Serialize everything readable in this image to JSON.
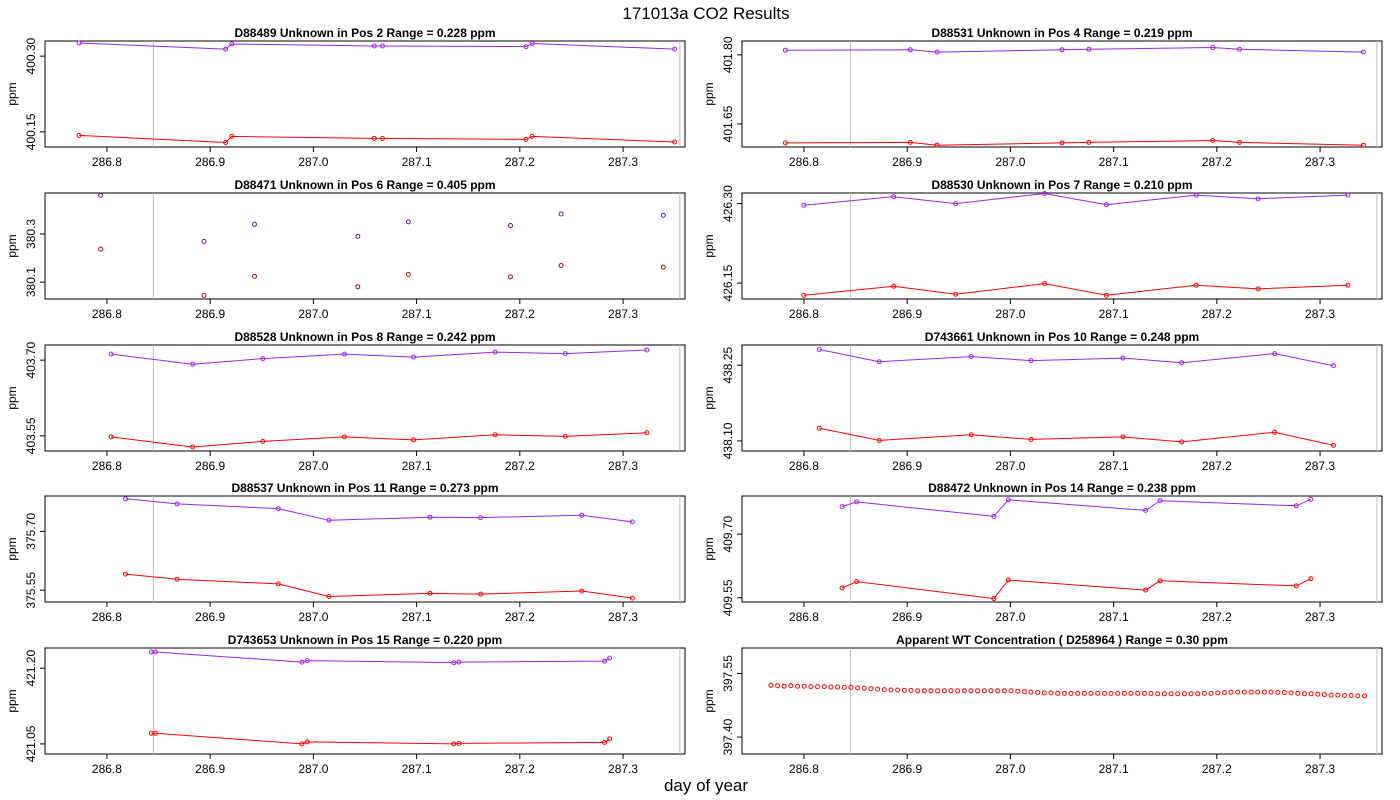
{
  "page_title": "171013a  CO2 Results",
  "x_axis_label": "day of year",
  "colors": {
    "upper_series": "#a020f0",
    "lower_series": "#ff0000",
    "mixed_points": "#0000ff",
    "marker_lines": "#bebebe",
    "axes": "#000000"
  },
  "chart_data": [
    {
      "type": "line",
      "panel": "D88489",
      "title": {
        "id": "D88489",
        "name": "Unknown in Pos 2",
        "range_label": "Range =  0.228 ppm"
      },
      "ylabel": "ppm",
      "xlim": [
        286.74,
        287.36
      ],
      "ylim": [
        400.12,
        400.33
      ],
      "xticks": [
        "286.8",
        "286.9",
        "287.0",
        "287.1",
        "287.2",
        "287.3"
      ],
      "yticks": [
        "400.15",
        "400.30"
      ],
      "marker_lines": [
        286.845,
        287.355
      ],
      "series": [
        {
          "name": "upper",
          "x": [
            286.773,
            286.915,
            286.921,
            287.059,
            287.067,
            287.206,
            287.212,
            287.35
          ],
          "y": [
            400.326,
            400.314,
            400.324,
            400.32,
            400.32,
            400.319,
            400.325,
            400.314
          ]
        },
        {
          "name": "lower",
          "x": [
            286.773,
            286.915,
            286.921,
            287.059,
            287.067,
            287.206,
            287.212,
            287.35
          ],
          "y": [
            400.143,
            400.129,
            400.141,
            400.137,
            400.137,
            400.135,
            400.141,
            400.13
          ]
        }
      ]
    },
    {
      "type": "line",
      "panel": "D88531",
      "title": {
        "id": "D88531",
        "name": "Unknown in Pos 4",
        "range_label": "Range =  0.219 ppm"
      },
      "ylabel": "ppm",
      "xlim": [
        286.74,
        287.36
      ],
      "ylim": [
        401.6,
        401.83
      ],
      "xticks": [
        "286.8",
        "286.9",
        "287.0",
        "287.1",
        "287.2",
        "287.3"
      ],
      "yticks": [
        "401.65",
        "401.80"
      ],
      "marker_lines": [
        286.845,
        287.355
      ],
      "series": [
        {
          "name": "upper",
          "x": [
            286.782,
            286.903,
            286.929,
            287.05,
            287.076,
            287.196,
            287.222,
            287.342
          ],
          "y": [
            401.81,
            401.811,
            401.806,
            401.811,
            401.812,
            401.816,
            401.812,
            401.806
          ]
        },
        {
          "name": "lower",
          "x": [
            286.782,
            286.903,
            286.929,
            287.05,
            287.076,
            287.196,
            287.222,
            287.342
          ],
          "y": [
            401.609,
            401.61,
            401.604,
            401.609,
            401.61,
            401.614,
            401.61,
            401.604
          ]
        }
      ]
    },
    {
      "type": "scatter",
      "panel": "D88471",
      "title": {
        "id": "D88471",
        "name": "Unknown in Pos 6",
        "range_label": "Range =  0.405 ppm"
      },
      "ylabel": "ppm",
      "xlim": [
        286.74,
        287.36
      ],
      "ylim": [
        380.03,
        380.47
      ],
      "xticks": [
        "286.8",
        "286.9",
        "287.0",
        "287.1",
        "287.2",
        "287.3"
      ],
      "yticks": [
        "380.1",
        "380.3"
      ],
      "marker_lines": [
        286.845,
        287.355
      ],
      "series": [
        {
          "name": "upper",
          "x": [
            286.794,
            286.894,
            286.943,
            287.043,
            287.092,
            287.191,
            287.24,
            287.339
          ],
          "y": [
            380.46,
            380.269,
            380.34,
            380.29,
            380.35,
            380.335,
            380.383,
            380.378
          ]
        },
        {
          "name": "lower",
          "x": [
            286.794,
            286.894,
            286.943,
            287.043,
            287.092,
            287.191,
            287.24,
            287.339
          ],
          "y": [
            380.237,
            380.045,
            380.124,
            380.081,
            380.132,
            380.122,
            380.169,
            380.162
          ]
        }
      ]
    },
    {
      "type": "line",
      "panel": "D88530",
      "title": {
        "id": "D88530",
        "name": "Unknown in Pos 7",
        "range_label": "Range =  0.210 ppm"
      },
      "ylabel": "ppm",
      "xlim": [
        286.74,
        287.36
      ],
      "ylim": [
        426.12,
        426.32
      ],
      "xticks": [
        "286.8",
        "286.9",
        "287.0",
        "287.1",
        "287.2",
        "287.3"
      ],
      "yticks": [
        "426.15",
        "426.30"
      ],
      "marker_lines": [
        286.845,
        287.355
      ],
      "series": [
        {
          "name": "upper",
          "x": [
            286.8,
            286.887,
            286.947,
            287.033,
            287.093,
            287.18,
            287.24,
            287.327
          ],
          "y": [
            426.297,
            426.313,
            426.3,
            426.319,
            426.298,
            426.316,
            426.309,
            426.316
          ]
        },
        {
          "name": "lower",
          "x": [
            286.8,
            286.887,
            286.947,
            287.033,
            287.093,
            287.18,
            287.24,
            287.327
          ],
          "y": [
            426.127,
            426.144,
            426.129,
            426.149,
            426.127,
            426.146,
            426.139,
            426.146
          ]
        }
      ]
    },
    {
      "type": "line",
      "panel": "D88528",
      "title": {
        "id": "D88528",
        "name": "Unknown in Pos 8",
        "range_label": "Range =  0.242 ppm"
      },
      "ylabel": "ppm",
      "xlim": [
        286.74,
        287.36
      ],
      "ylim": [
        403.52,
        403.73
      ],
      "xticks": [
        "286.8",
        "286.9",
        "287.0",
        "287.1",
        "287.2",
        "287.3"
      ],
      "yticks": [
        "403.55",
        "403.70"
      ],
      "marker_lines": [
        286.845,
        287.355
      ],
      "series": [
        {
          "name": "upper",
          "x": [
            286.804,
            286.883,
            286.951,
            287.03,
            287.097,
            287.176,
            287.244,
            287.323
          ],
          "y": [
            403.712,
            403.692,
            403.703,
            403.712,
            403.706,
            403.716,
            403.713,
            403.72
          ]
        },
        {
          "name": "lower",
          "x": [
            286.804,
            286.883,
            286.951,
            287.03,
            287.097,
            287.176,
            287.244,
            287.323
          ],
          "y": [
            403.548,
            403.528,
            403.539,
            403.548,
            403.542,
            403.552,
            403.549,
            403.556
          ]
        }
      ]
    },
    {
      "type": "line",
      "panel": "D743661",
      "title": {
        "id": "D743661",
        "name": "Unknown in Pos 10",
        "range_label": "Range =  0.248 ppm"
      },
      "ylabel": "ppm",
      "xlim": [
        286.74,
        287.36
      ],
      "ylim": [
        438.08,
        438.29
      ],
      "xticks": [
        "286.8",
        "286.9",
        "287.0",
        "287.1",
        "287.2",
        "287.3"
      ],
      "yticks": [
        "438.10",
        "438.25"
      ],
      "marker_lines": [
        286.845,
        287.355
      ],
      "series": [
        {
          "name": "upper",
          "x": [
            286.815,
            286.873,
            286.962,
            287.02,
            287.109,
            287.166,
            287.256,
            287.313
          ],
          "y": [
            438.281,
            438.257,
            438.267,
            438.259,
            438.264,
            438.255,
            438.273,
            438.249
          ]
        },
        {
          "name": "lower",
          "x": [
            286.815,
            286.873,
            286.962,
            287.02,
            287.109,
            287.166,
            287.256,
            287.313
          ],
          "y": [
            438.125,
            438.101,
            438.112,
            438.103,
            438.108,
            438.098,
            438.117,
            438.091
          ]
        }
      ]
    },
    {
      "type": "line",
      "panel": "D88537",
      "title": {
        "id": "D88537",
        "name": "Unknown in Pos 11",
        "range_label": "Range =  0.273 ppm"
      },
      "ylabel": "ppm",
      "xlim": [
        286.74,
        287.36
      ],
      "ylim": [
        375.52,
        375.79
      ],
      "xticks": [
        "286.8",
        "286.9",
        "287.0",
        "287.1",
        "287.2",
        "287.3"
      ],
      "yticks": [
        "375.55",
        "375.70"
      ],
      "marker_lines": [
        286.845,
        287.355
      ],
      "series": [
        {
          "name": "upper",
          "x": [
            286.818,
            286.868,
            286.966,
            287.015,
            287.113,
            287.162,
            287.26,
            287.309
          ],
          "y": [
            375.783,
            375.77,
            375.758,
            375.728,
            375.736,
            375.735,
            375.741,
            375.724
          ]
        },
        {
          "name": "lower",
          "x": [
            286.818,
            286.868,
            286.966,
            287.015,
            287.113,
            287.162,
            287.26,
            287.309
          ],
          "y": [
            375.591,
            375.578,
            375.566,
            375.534,
            375.542,
            375.54,
            375.548,
            375.53
          ]
        }
      ]
    },
    {
      "type": "line",
      "panel": "D88472",
      "title": {
        "id": "D88472",
        "name": "Unknown in Pos 14",
        "range_label": "Range =  0.238 ppm"
      },
      "ylabel": "ppm",
      "xlim": [
        286.74,
        287.36
      ],
      "ylim": [
        409.54,
        409.79
      ],
      "xticks": [
        "286.8",
        "286.9",
        "287.0",
        "287.1",
        "287.2",
        "287.3"
      ],
      "yticks": [
        "409.55",
        "409.70"
      ],
      "marker_lines": [
        286.845,
        287.355
      ],
      "series": [
        {
          "name": "upper",
          "x": [
            286.837,
            286.851,
            286.984,
            286.998,
            287.131,
            287.145,
            287.277,
            287.291
          ],
          "y": [
            409.765,
            409.776,
            409.742,
            409.781,
            409.756,
            409.779,
            409.767,
            409.782
          ]
        },
        {
          "name": "lower",
          "x": [
            286.837,
            286.851,
            286.984,
            286.998,
            287.131,
            287.145,
            287.277,
            287.291
          ],
          "y": [
            409.573,
            409.588,
            409.548,
            409.592,
            409.568,
            409.59,
            409.578,
            409.595
          ]
        }
      ]
    },
    {
      "type": "line",
      "panel": "D743653",
      "title": {
        "id": "D743653",
        "name": "Unknown in Pos 15",
        "range_label": "Range =  0.220 ppm"
      },
      "ylabel": "ppm",
      "xlim": [
        286.74,
        287.36
      ],
      "ylim": [
        421.03,
        421.24
      ],
      "xticks": [
        "286.8",
        "286.9",
        "287.0",
        "287.1",
        "287.2",
        "287.3"
      ],
      "yticks": [
        "421.05",
        "421.20"
      ],
      "marker_lines": [
        286.845,
        287.355
      ],
      "series": [
        {
          "name": "upper",
          "x": [
            286.843,
            286.847,
            286.989,
            286.994,
            287.136,
            287.141,
            287.282,
            287.287
          ],
          "y": [
            421.232,
            421.232,
            421.212,
            421.215,
            421.211,
            421.212,
            421.214,
            421.22
          ]
        },
        {
          "name": "lower",
          "x": [
            286.843,
            286.847,
            286.989,
            286.994,
            287.136,
            287.141,
            287.282,
            287.287
          ],
          "y": [
            421.071,
            421.071,
            421.05,
            421.054,
            421.05,
            421.051,
            421.053,
            421.06
          ]
        }
      ]
    },
    {
      "type": "line",
      "panel": "D258964",
      "title": {
        "id": "",
        "name": "Apparent WT Concentration ( D258964 )",
        "range_label": "Range = 0.30 ppm"
      },
      "ylabel": "ppm",
      "xlim": [
        286.74,
        287.36
      ],
      "ylim": [
        397.36,
        397.61
      ],
      "xticks": [
        "286.8",
        "286.9",
        "287.0",
        "287.1",
        "287.2",
        "287.3"
      ],
      "yticks": [
        "397.40",
        "397.55"
      ],
      "marker_lines": [
        286.845,
        287.355
      ],
      "series": [
        {
          "name": "wt",
          "point_count": 90,
          "x_start": 286.768,
          "x_end": 287.343,
          "y": [
            397.522,
            397.521,
            397.52,
            397.521,
            397.52,
            397.52,
            397.519,
            397.519,
            397.519,
            397.518,
            397.518,
            397.517,
            397.517,
            397.516,
            397.515,
            397.514,
            397.513,
            397.512,
            397.511,
            397.511,
            397.51,
            397.51,
            397.509,
            397.509,
            397.509,
            397.509,
            397.509,
            397.509,
            397.509,
            397.509,
            397.509,
            397.509,
            397.509,
            397.509,
            397.509,
            397.509,
            397.509,
            397.508,
            397.507,
            397.506,
            397.505,
            397.504,
            397.504,
            397.503,
            397.503,
            397.503,
            397.503,
            397.503,
            397.503,
            397.503,
            397.503,
            397.503,
            397.503,
            397.503,
            397.503,
            397.503,
            397.503,
            397.503,
            397.502,
            397.502,
            397.502,
            397.502,
            397.502,
            397.502,
            397.502,
            397.503,
            397.503,
            397.504,
            397.505,
            397.506,
            397.506,
            397.506,
            397.506,
            397.506,
            397.506,
            397.506,
            397.505,
            397.505,
            397.504,
            397.503,
            397.502,
            397.502,
            397.501,
            397.5,
            397.499,
            397.499,
            397.498,
            397.498,
            397.497,
            397.497
          ]
        }
      ]
    }
  ]
}
